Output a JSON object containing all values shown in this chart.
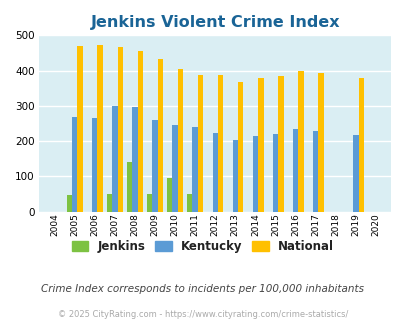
{
  "title": "Jenkins Violent Crime Index",
  "years": [
    2004,
    2005,
    2006,
    2007,
    2008,
    2009,
    2010,
    2011,
    2012,
    2013,
    2014,
    2015,
    2016,
    2017,
    2018,
    2019,
    2020
  ],
  "jenkins": [
    0,
    47,
    0,
    50,
    140,
    50,
    95,
    50,
    0,
    0,
    0,
    0,
    0,
    0,
    0,
    0,
    0
  ],
  "kentucky": [
    0,
    267,
    265,
    300,
    298,
    260,
    245,
    240,
    224,
    202,
    215,
    221,
    235,
    228,
    0,
    217,
    0
  ],
  "national": [
    0,
    469,
    473,
    467,
    455,
    432,
    405,
    388,
    388,
    368,
    378,
    384,
    398,
    394,
    0,
    379,
    0
  ],
  "jenkins_color": "#7dc242",
  "kentucky_color": "#5b9bd5",
  "national_color": "#ffc000",
  "bg_color": "#daeef3",
  "title_color": "#1a6496",
  "ylim": [
    0,
    500
  ],
  "yticks": [
    0,
    100,
    200,
    300,
    400,
    500
  ],
  "subtitle": "Crime Index corresponds to incidents per 100,000 inhabitants",
  "footer": "© 2025 CityRating.com - https://www.cityrating.com/crime-statistics/",
  "subtitle_color": "#444444",
  "footer_color": "#aaaaaa"
}
